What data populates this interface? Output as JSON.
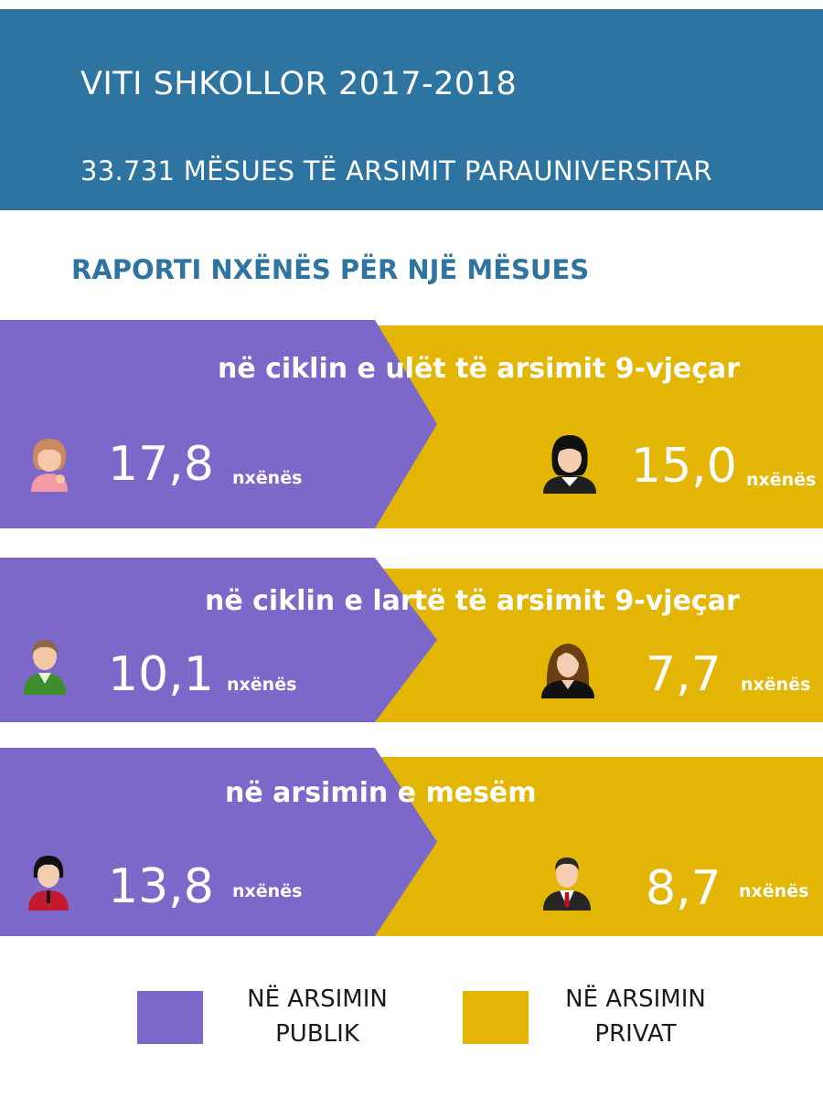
{
  "colors": {
    "header_bg": "#2e74a0",
    "title_text": "#2e74a0",
    "public": "#7b68c8",
    "private": "#e3b505"
  },
  "header": {
    "line1": "VITI SHKOLLOR 2017-2018",
    "line2": "33.731 MËSUES TË ARSIMIT PARAUNIVERSITAR"
  },
  "section_title": "RAPORTI NXËNËS PËR NJË MËSUES",
  "bands": [
    {
      "title": "në ciklin e ulët të arsimit 9-vjeçar",
      "public": {
        "value": "17,8",
        "unit": "nxënës",
        "icon": "girl-icon"
      },
      "private": {
        "value": "15,0",
        "unit": "nxënës",
        "icon": "woman-dark-hair-icon"
      }
    },
    {
      "title": "në ciklin e lartë të arsimit 9-vjeçar",
      "public": {
        "value": "10,1",
        "unit": "nxënës",
        "icon": "boy-icon"
      },
      "private": {
        "value": "7,7",
        "unit": "nxënës",
        "icon": "woman-long-hair-icon"
      }
    },
    {
      "title": "në arsimin e mesëm",
      "public": {
        "value": "13,8",
        "unit": "nxënës",
        "icon": "student-girl-icon"
      },
      "private": {
        "value": "8,7",
        "unit": "nxënës",
        "icon": "businessman-icon"
      }
    }
  ],
  "legend": {
    "public_line1": "NË ARSIMIN",
    "public_line2": "PUBLIK",
    "private_line1": "NË ARSIMIN",
    "private_line2": "PRIVAT"
  }
}
